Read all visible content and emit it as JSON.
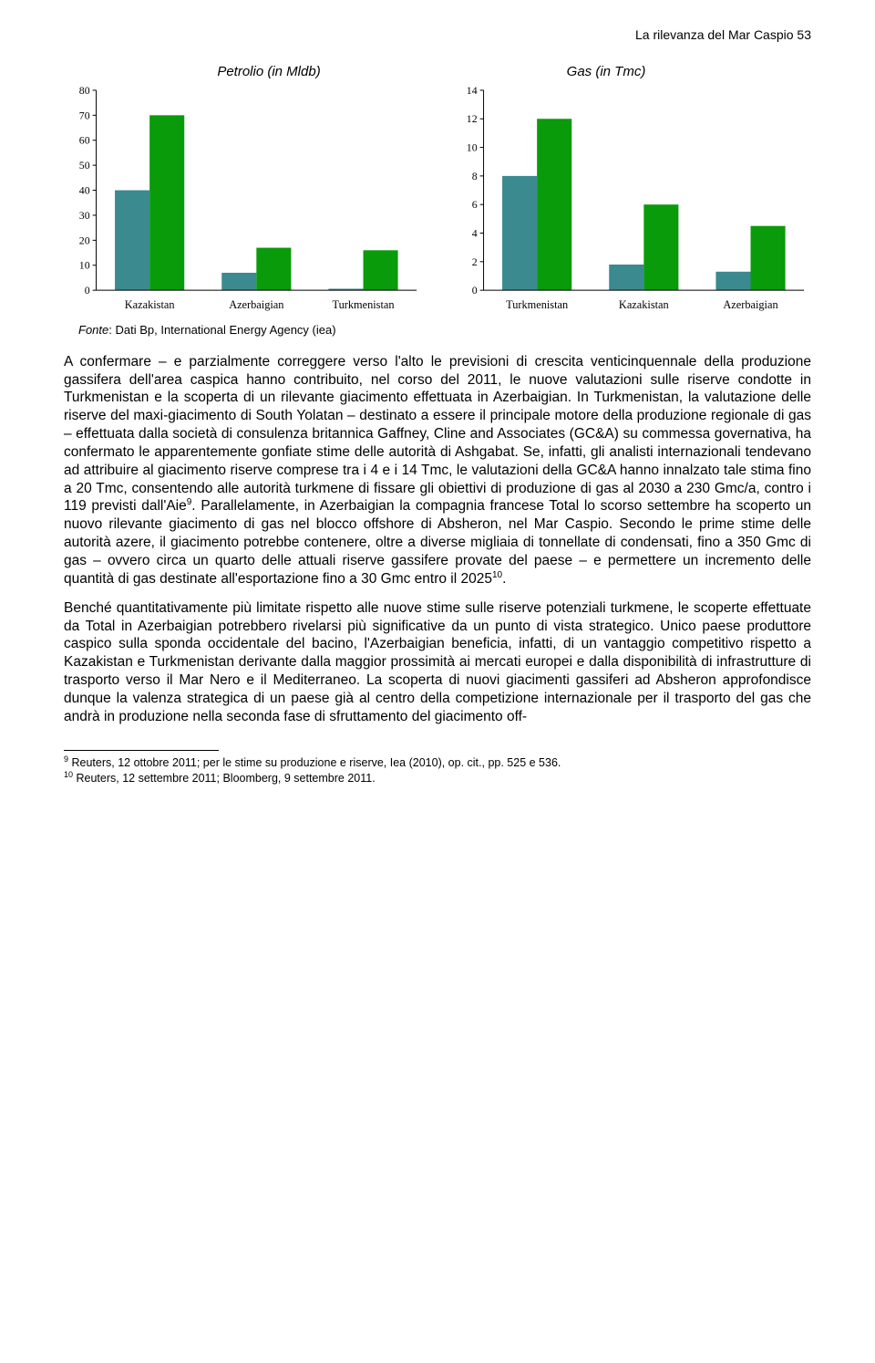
{
  "header": {
    "text": "La rilevanza del Mar Caspio   53"
  },
  "chart_titles": {
    "left": "Petrolio (in Mldb)",
    "right": "Gas (in Tmc)"
  },
  "chart_left": {
    "type": "bar",
    "categories": [
      "Kazakistan",
      "Azerbaigian",
      "Turkmenistan"
    ],
    "series": [
      {
        "values": [
          40,
          7,
          0.6
        ],
        "color": "#3a8a8f"
      },
      {
        "values": [
          70,
          17,
          16
        ],
        "color": "#0a9b0a"
      }
    ],
    "ylim": [
      0,
      80
    ],
    "ytick_step": 10,
    "axis_color": "#000000",
    "tick_font_size": 12,
    "label_font_size": 12.5,
    "background_color": "#ffffff",
    "bar_group_gap_ratio": 0.35,
    "bar_gap_ratio": 0.0
  },
  "chart_right": {
    "type": "bar",
    "categories": [
      "Turkmenistan",
      "Kazakistan",
      "Azerbaigian"
    ],
    "series": [
      {
        "values": [
          8.0,
          1.8,
          1.3
        ],
        "color": "#3a8a8f"
      },
      {
        "values": [
          12.0,
          6.0,
          4.5
        ],
        "color": "#0a9b0a"
      }
    ],
    "ylim": [
      0,
      14
    ],
    "ytick_step": 2,
    "axis_color": "#000000",
    "tick_font_size": 12,
    "label_font_size": 12.5,
    "background_color": "#ffffff",
    "bar_group_gap_ratio": 0.35,
    "bar_gap_ratio": 0.0
  },
  "fonte": {
    "label": "Fonte",
    "text": ": Dati Bp, International Energy Agency (iea)"
  },
  "paragraphs": {
    "p1": "A confermare – e parzialmente correggere verso l'alto le previsioni di crescita venticinquennale della produzione gassifera dell'area caspica hanno contribuito, nel corso del 2011, le nuove valutazioni sulle riserve condotte in Turkmenistan e la scoperta di un rilevante giacimento effettuata in Azerbaigian. In Turkmenistan, la valutazione delle riserve del maxi-giacimento di South Yolatan – destinato a essere il principale motore della produzione regionale di gas – effettuata dalla società di consulenza britannica Gaffney, Cline and Associates (GC&A) su commessa governativa, ha confermato le apparentemente gonfiate stime delle autorità di Ashgabat. Se, infatti, gli analisti internazionali tendevano ad attribuire al giacimento riserve comprese tra i 4 e i 14 Tmc, le valutazioni della GC&A hanno innalzato tale stima fino a 20 Tmc, consentendo alle autorità turkmene di fissare gli obiettivi di produzione di gas al 2030 a 230 Gmc/a, contro i 119 previsti dall'Aie",
    "p1_sup": "9",
    "p1b": ". Parallelamente, in Azerbaigian la compagnia francese Total lo scorso settembre ha scoperto un nuovo rilevante giacimento di gas nel blocco offshore di Absheron, nel Mar Caspio. Secondo le prime stime delle autorità azere, il giacimento potrebbe contenere, oltre a diverse migliaia di tonnellate di condensati, fino a 350 Gmc di gas – ovvero circa un quarto delle attuali riserve gassifere provate del paese – e permettere un incremento delle quantità di gas destinate all'esportazione fino a 30 Gmc entro il 2025",
    "p1_sup2": "10",
    "p1c": ".",
    "p2": "Benché quantitativamente più limitate rispetto alle nuove stime sulle riserve potenziali turkmene, le scoperte effettuate da Total in Azerbaigian potrebbero rivelarsi più significative da un punto di vista strategico. Unico paese produttore caspico sulla sponda occidentale del bacino, l'Azerbaigian beneficia, infatti, di un vantaggio competitivo rispetto a Kazakistan e Turkmenistan derivante dalla maggior prossimità ai mercati europei e dalla disponibilità di infrastrutture di trasporto verso il Mar Nero e il Mediterraneo. La scoperta di nuovi giacimenti gassiferi ad Absheron approfondisce dunque la valenza strategica di un paese già al centro della competizione internazionale per il trasporto del gas che andrà in produzione nella seconda fase di sfruttamento del giacimento off-"
  },
  "footnotes": {
    "f9_num": "9",
    "f9": " Reuters, 12 ottobre 2011; per le stime su produzione e riserve, Iea (2010), op. cit., pp. 525 e 536.",
    "f10_num": "10",
    "f10": " Reuters, 12 settembre 2011; Bloomberg, 9 settembre 2011."
  }
}
